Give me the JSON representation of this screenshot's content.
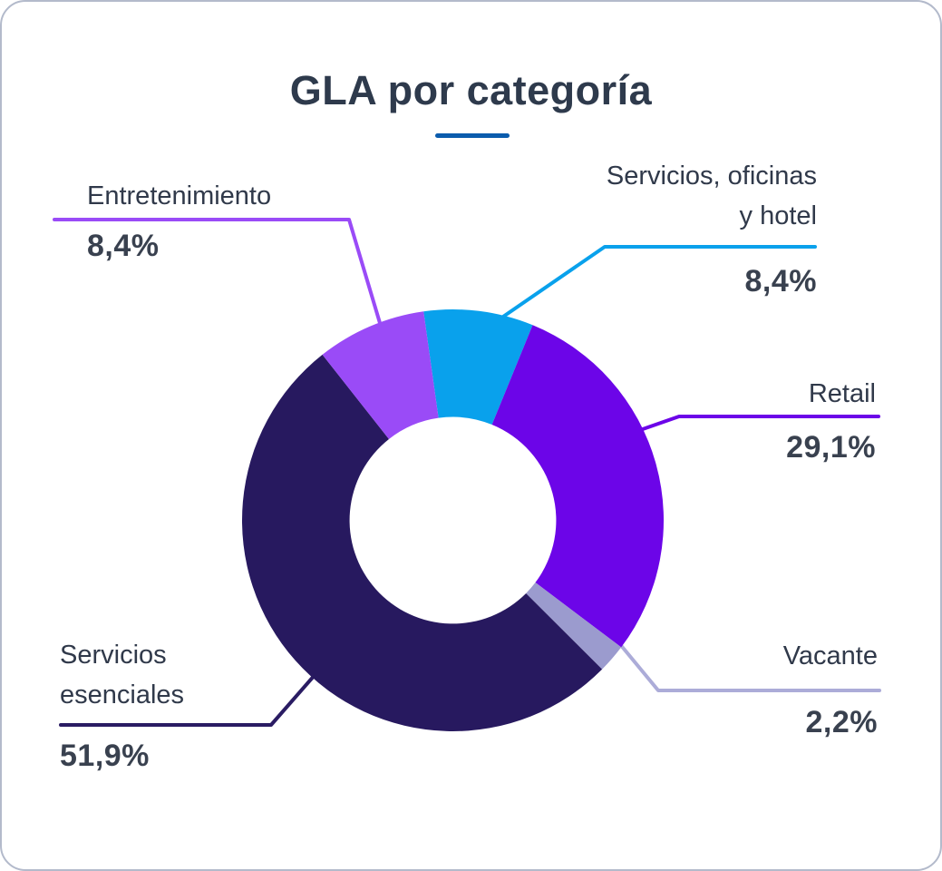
{
  "card": {
    "title": "GLA por categoría",
    "underline_color": "#0b5cad",
    "border_color": "#b3bacb",
    "background": "#ffffff"
  },
  "text_colors": {
    "title": "#2e3a4c",
    "label": "#30394a",
    "percent": "#39414f"
  },
  "chart_data": {
    "type": "pie",
    "variant": "donut",
    "title": "GLA por categoría",
    "value_suffix": "%",
    "start_angle_deg": -8,
    "inner_radius_ratio": 0.49,
    "legend_position": "callout-labels",
    "slices": [
      {
        "label": "Servicios, oficinas y hotel",
        "value": 8.4,
        "display_value": "8,4%",
        "color": "#09a1ec",
        "line_color": "#09a1ec"
      },
      {
        "label": "Retail",
        "value": 29.1,
        "display_value": "29,1%",
        "color": "#6c05e8",
        "line_color": "#6c05e8"
      },
      {
        "label": "Vacante",
        "value": 2.2,
        "display_value": "2,2%",
        "color": "#9b9bce",
        "line_color": "#acacd8"
      },
      {
        "label": "Servicios esenciales",
        "value": 51.9,
        "display_value": "51,9%",
        "color": "#27195f",
        "line_color": "#2a1c63"
      },
      {
        "label": "Entretenimiento",
        "value": 8.4,
        "display_value": "8,4%",
        "color": "#9a4bf7",
        "line_color": "#9a4bf7"
      }
    ]
  },
  "callouts": {
    "entretenimiento": {
      "name": "Entretenimiento",
      "pct": "8,4%"
    },
    "servicios": {
      "name_line1": "Servicios, oficinas",
      "name_line2": "y hotel",
      "pct": "8,4%"
    },
    "retail": {
      "name": "Retail",
      "pct": "29,1%"
    },
    "vacante": {
      "name": "Vacante",
      "pct": "2,2%"
    },
    "esenciales": {
      "name_line1": "Servicios",
      "name_line2": "esenciales",
      "pct": "51,9%"
    }
  }
}
